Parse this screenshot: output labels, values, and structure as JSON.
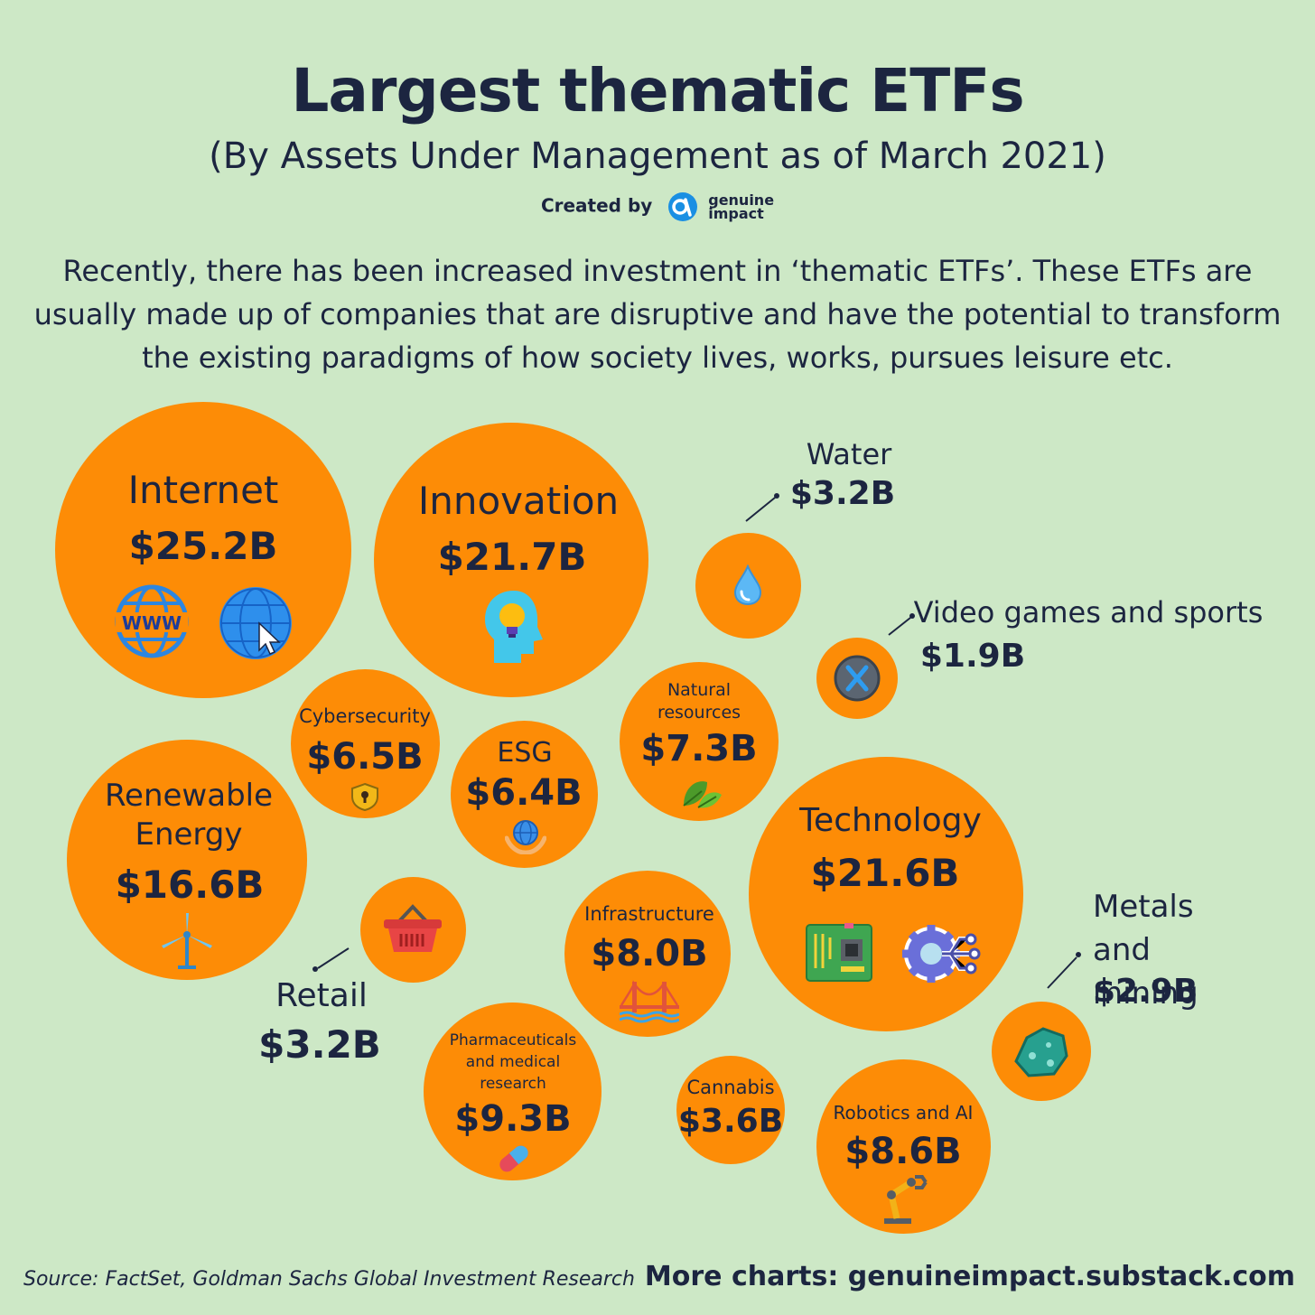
{
  "title": "Largest thematic ETFs",
  "subtitle": "(By Assets Under Management as of March 2021)",
  "credit": {
    "created_by": "Created by",
    "brand_line1": "genuine",
    "brand_line2": "impact"
  },
  "intro": "Recently, there has been increased investment in ‘thematic ETFs’. These ETFs are usually made up of companies that are disruptive and have the potential to transform the existing paradigms of how society lives, works, pursues leisure etc.",
  "source": "Source: FactSet, Goldman Sachs Global Investment Research",
  "more_charts": "More charts: genuineimpact.substack.com",
  "colors": {
    "background": "#cde8c6",
    "bubble": "#fd8c06",
    "text": "#1c2540"
  },
  "chart_data": {
    "type": "bubble",
    "title": "Largest thematic ETFs",
    "subtitle": "(By Assets Under Management as of March 2021)",
    "unit": "$B",
    "items": [
      {
        "name": "Internet",
        "value": 25.2,
        "label": "$25.2B",
        "icons": [
          "www-globe-icon",
          "globe-cursor-icon"
        ]
      },
      {
        "name": "Innovation",
        "value": 21.7,
        "label": "$21.7B",
        "icons": [
          "head-lightbulb-icon"
        ]
      },
      {
        "name": "Technology",
        "value": 21.6,
        "label": "$21.6B",
        "icons": [
          "circuit-board-icon",
          "gear-network-icon"
        ]
      },
      {
        "name": "Renewable Energy",
        "value": 16.6,
        "label": "$16.6B",
        "icons": [
          "wind-turbine-icon"
        ]
      },
      {
        "name": "Pharmaceuticals and medical research",
        "value": 9.3,
        "label": "$9.3B",
        "icons": [
          "pill-icon"
        ]
      },
      {
        "name": "Robotics and AI",
        "value": 8.6,
        "label": "$8.6B",
        "icons": [
          "robot-arm-icon"
        ]
      },
      {
        "name": "Infrastructure",
        "value": 8.0,
        "label": "$8.0B",
        "icons": [
          "bridge-icon"
        ]
      },
      {
        "name": "Natural resources",
        "value": 7.3,
        "label": "$7.3B",
        "icons": [
          "leaves-icon"
        ]
      },
      {
        "name": "Cybersecurity",
        "value": 6.5,
        "label": "$6.5B",
        "icons": [
          "shield-lock-icon"
        ]
      },
      {
        "name": "ESG",
        "value": 6.4,
        "label": "$6.4B",
        "icons": [
          "hands-globe-icon"
        ]
      },
      {
        "name": "Cannabis",
        "value": 3.6,
        "label": "$3.6B",
        "icons": []
      },
      {
        "name": "Water",
        "value": 3.2,
        "label": "$3.2B",
        "icons": [
          "water-drop-icon"
        ]
      },
      {
        "name": "Retail",
        "value": 3.2,
        "label": "$3.2B",
        "icons": [
          "shopping-basket-icon"
        ]
      },
      {
        "name": "Metals and mining",
        "value": 2.9,
        "label": "$2.9B",
        "icons": [
          "ore-rock-icon"
        ]
      },
      {
        "name": "Video games and sports",
        "value": 1.9,
        "label": "$1.9B",
        "icons": [
          "game-button-icon"
        ]
      }
    ]
  }
}
